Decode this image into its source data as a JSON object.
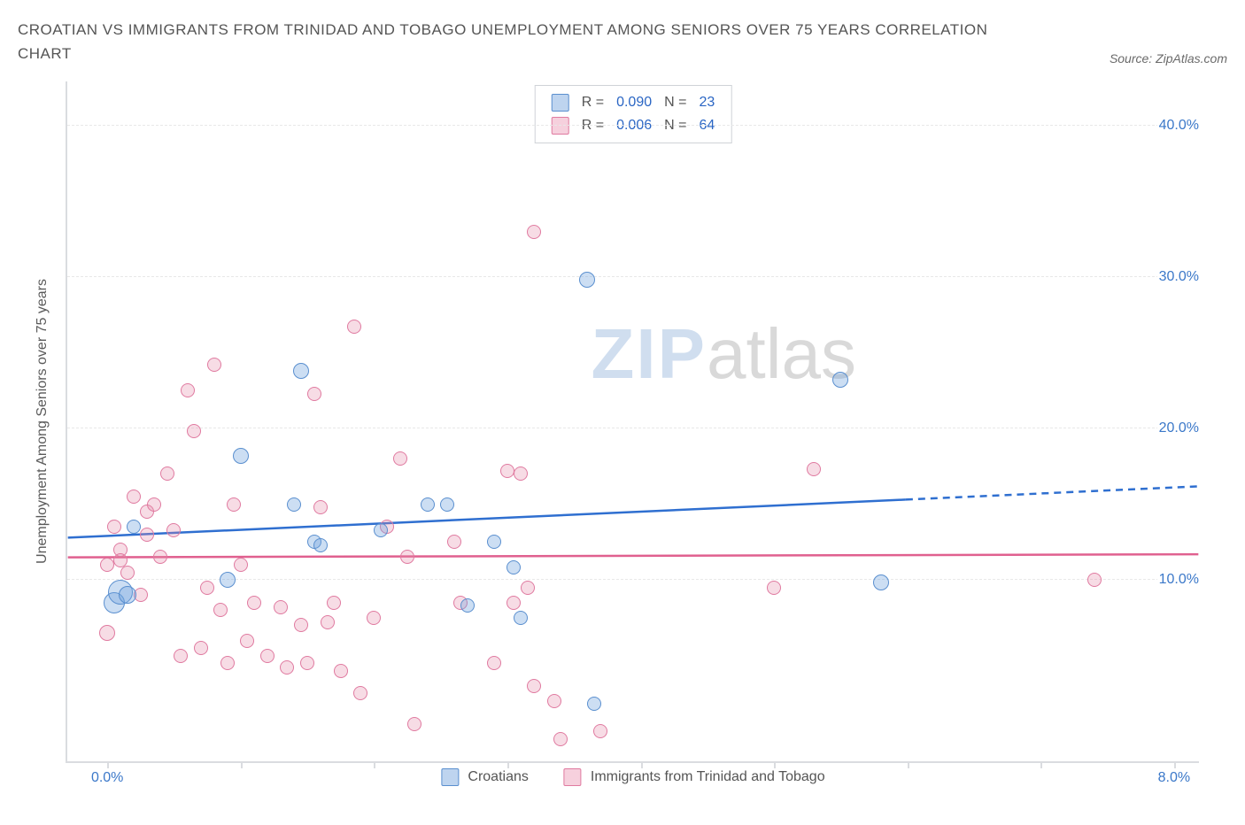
{
  "title": "CROATIAN VS IMMIGRANTS FROM TRINIDAD AND TOBAGO UNEMPLOYMENT AMONG SENIORS OVER 75 YEARS CORRELATION CHART",
  "source": "Source: ZipAtlas.com",
  "watermark": {
    "part1": "ZIP",
    "part2": "atlas"
  },
  "chart": {
    "type": "scatter",
    "xlim": [
      -0.3,
      8.2
    ],
    "ylim": [
      -2,
      43
    ],
    "yaxis_title": "Unemployment Among Seniors over 75 years",
    "x_ticks": [
      0,
      1,
      2,
      3,
      4,
      5,
      6,
      7,
      8
    ],
    "x_tick_labels": {
      "0": "0.0%",
      "8": "8.0%"
    },
    "y_gridlines": [
      10,
      20,
      30,
      40
    ],
    "y_tick_labels": [
      "10.0%",
      "20.0%",
      "30.0%",
      "40.0%"
    ],
    "background_color": "#ffffff",
    "grid_color": "#e8e8e8",
    "axis_color": "#dadce0",
    "label_color": "#3b78c9",
    "series": [
      {
        "name": "Croatians",
        "key": "blue",
        "color_fill": "rgba(110,160,220,0.35)",
        "color_stroke": "#5a8fcf",
        "R": "0.090",
        "N": "23",
        "trend": {
          "y_at_xmin": 12.8,
          "y_at_xmax": 16.2,
          "solid_until_x": 6.0,
          "color": "#2f6fd0",
          "width": 2.5
        },
        "points": [
          {
            "x": 0.05,
            "y": 8.5,
            "r": 12
          },
          {
            "x": 0.1,
            "y": 9.2,
            "r": 14
          },
          {
            "x": 0.15,
            "y": 9.0,
            "r": 10
          },
          {
            "x": 0.2,
            "y": 13.5,
            "r": 8
          },
          {
            "x": 0.9,
            "y": 10.0,
            "r": 9
          },
          {
            "x": 1.0,
            "y": 18.2,
            "r": 9
          },
          {
            "x": 1.4,
            "y": 15.0,
            "r": 8
          },
          {
            "x": 1.45,
            "y": 23.8,
            "r": 9
          },
          {
            "x": 1.55,
            "y": 12.5,
            "r": 8
          },
          {
            "x": 1.6,
            "y": 12.3,
            "r": 8
          },
          {
            "x": 2.05,
            "y": 13.3,
            "r": 8
          },
          {
            "x": 2.4,
            "y": 15.0,
            "r": 8
          },
          {
            "x": 2.55,
            "y": 15.0,
            "r": 8
          },
          {
            "x": 2.7,
            "y": 8.3,
            "r": 8
          },
          {
            "x": 2.9,
            "y": 12.5,
            "r": 8
          },
          {
            "x": 3.05,
            "y": 10.8,
            "r": 8
          },
          {
            "x": 3.1,
            "y": 7.5,
            "r": 8
          },
          {
            "x": 3.6,
            "y": 29.8,
            "r": 9
          },
          {
            "x": 3.65,
            "y": 1.8,
            "r": 8
          },
          {
            "x": 5.5,
            "y": 23.2,
            "r": 9
          },
          {
            "x": 5.8,
            "y": 9.8,
            "r": 9
          }
        ]
      },
      {
        "name": "Immigrants from Trinidad and Tobago",
        "key": "pink",
        "color_fill": "rgba(230,140,170,0.30)",
        "color_stroke": "#e07aa0",
        "R": "0.006",
        "N": "64",
        "trend": {
          "y_at_xmin": 11.5,
          "y_at_xmax": 11.7,
          "solid_until_x": 8.2,
          "color": "#e0608f",
          "width": 2.5
        },
        "points": [
          {
            "x": 0.0,
            "y": 6.5,
            "r": 9
          },
          {
            "x": 0.0,
            "y": 11.0,
            "r": 8
          },
          {
            "x": 0.05,
            "y": 13.5,
            "r": 8
          },
          {
            "x": 0.1,
            "y": 12.0,
            "r": 8
          },
          {
            "x": 0.1,
            "y": 11.3,
            "r": 8
          },
          {
            "x": 0.15,
            "y": 10.5,
            "r": 8
          },
          {
            "x": 0.2,
            "y": 15.5,
            "r": 8
          },
          {
            "x": 0.25,
            "y": 9.0,
            "r": 8
          },
          {
            "x": 0.3,
            "y": 13.0,
            "r": 8
          },
          {
            "x": 0.3,
            "y": 14.5,
            "r": 8
          },
          {
            "x": 0.35,
            "y": 15.0,
            "r": 8
          },
          {
            "x": 0.4,
            "y": 11.5,
            "r": 8
          },
          {
            "x": 0.45,
            "y": 17.0,
            "r": 8
          },
          {
            "x": 0.5,
            "y": 13.3,
            "r": 8
          },
          {
            "x": 0.55,
            "y": 5.0,
            "r": 8
          },
          {
            "x": 0.6,
            "y": 22.5,
            "r": 8
          },
          {
            "x": 0.65,
            "y": 19.8,
            "r": 8
          },
          {
            "x": 0.7,
            "y": 5.5,
            "r": 8
          },
          {
            "x": 0.75,
            "y": 9.5,
            "r": 8
          },
          {
            "x": 0.8,
            "y": 24.2,
            "r": 8
          },
          {
            "x": 0.85,
            "y": 8.0,
            "r": 8
          },
          {
            "x": 0.9,
            "y": 4.5,
            "r": 8
          },
          {
            "x": 0.95,
            "y": 15.0,
            "r": 8
          },
          {
            "x": 1.0,
            "y": 11.0,
            "r": 8
          },
          {
            "x": 1.05,
            "y": 6.0,
            "r": 8
          },
          {
            "x": 1.1,
            "y": 8.5,
            "r": 8
          },
          {
            "x": 1.2,
            "y": 5.0,
            "r": 8
          },
          {
            "x": 1.3,
            "y": 8.2,
            "r": 8
          },
          {
            "x": 1.35,
            "y": 4.2,
            "r": 8
          },
          {
            "x": 1.45,
            "y": 7.0,
            "r": 8
          },
          {
            "x": 1.5,
            "y": 4.5,
            "r": 8
          },
          {
            "x": 1.55,
            "y": 22.3,
            "r": 8
          },
          {
            "x": 1.6,
            "y": 14.8,
            "r": 8
          },
          {
            "x": 1.65,
            "y": 7.2,
            "r": 8
          },
          {
            "x": 1.7,
            "y": 8.5,
            "r": 8
          },
          {
            "x": 1.75,
            "y": 4.0,
            "r": 8
          },
          {
            "x": 1.85,
            "y": 26.7,
            "r": 8
          },
          {
            "x": 1.9,
            "y": 2.5,
            "r": 8
          },
          {
            "x": 2.0,
            "y": 7.5,
            "r": 8
          },
          {
            "x": 2.1,
            "y": 13.5,
            "r": 8
          },
          {
            "x": 2.2,
            "y": 18.0,
            "r": 8
          },
          {
            "x": 2.25,
            "y": 11.5,
            "r": 8
          },
          {
            "x": 2.3,
            "y": 0.5,
            "r": 8
          },
          {
            "x": 2.6,
            "y": 12.5,
            "r": 8
          },
          {
            "x": 2.65,
            "y": 8.5,
            "r": 8
          },
          {
            "x": 2.9,
            "y": 4.5,
            "r": 8
          },
          {
            "x": 3.0,
            "y": 17.2,
            "r": 8
          },
          {
            "x": 3.05,
            "y": 8.5,
            "r": 8
          },
          {
            "x": 3.1,
            "y": 17.0,
            "r": 8
          },
          {
            "x": 3.15,
            "y": 9.5,
            "r": 8
          },
          {
            "x": 3.2,
            "y": 33.0,
            "r": 8
          },
          {
            "x": 3.2,
            "y": 3.0,
            "r": 8
          },
          {
            "x": 3.35,
            "y": 2.0,
            "r": 8
          },
          {
            "x": 3.4,
            "y": -0.5,
            "r": 8
          },
          {
            "x": 3.7,
            "y": 0.0,
            "r": 8
          },
          {
            "x": 5.0,
            "y": 9.5,
            "r": 8
          },
          {
            "x": 5.3,
            "y": 17.3,
            "r": 8
          },
          {
            "x": 7.4,
            "y": 10.0,
            "r": 8
          }
        ]
      }
    ],
    "legend_top": {
      "r_label": "R =",
      "n_label": "N ="
    },
    "legend_bottom": [
      {
        "key": "blue",
        "label": "Croatians"
      },
      {
        "key": "pink",
        "label": "Immigrants from Trinidad and Tobago"
      }
    ]
  }
}
